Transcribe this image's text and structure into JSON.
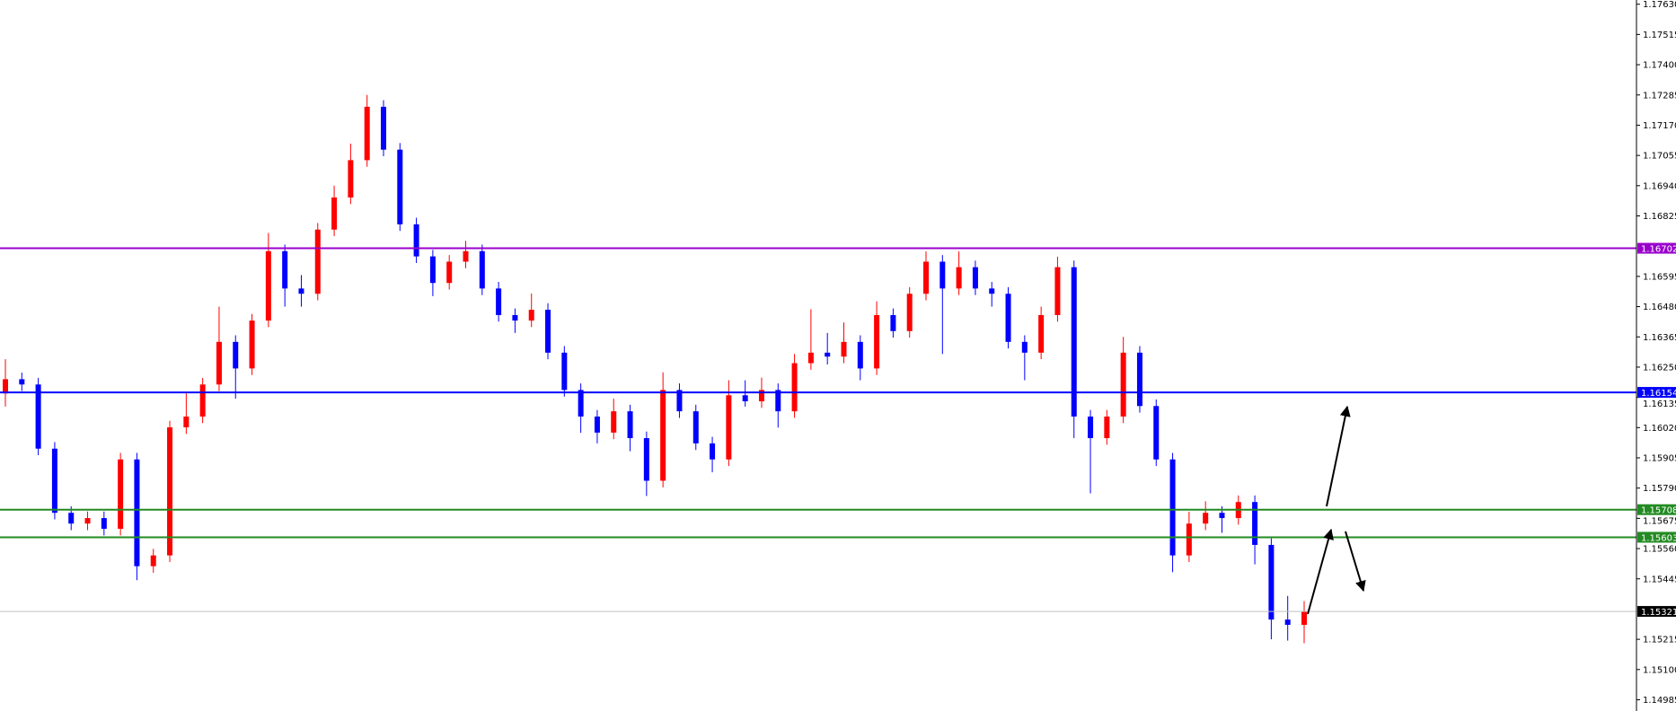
{
  "chart_data": {
    "type": "candlestick",
    "title": "",
    "xlabel": "",
    "ylabel": "",
    "ylim": [
      1.14985,
      1.1763
    ],
    "grid": false,
    "y_ticks": [
      "1.17630",
      "1.17515",
      "1.17400",
      "1.17285",
      "1.17170",
      "1.17055",
      "1.16940",
      "1.16825",
      "1.16595",
      "1.16480",
      "1.16365",
      "1.16250",
      "1.16135",
      "1.16020",
      "1.15905",
      "1.15790",
      "1.15675",
      "1.15560",
      "1.15445",
      "1.15215",
      "1.15100",
      "1.14985"
    ],
    "colors": {
      "up": "#ff0000",
      "down": "#0000ff"
    },
    "candles_ohlc": [
      [
        1.1615,
        1.1628,
        1.161,
        1.16204
      ],
      [
        1.16204,
        1.16229,
        1.16159,
        1.16184
      ],
      [
        1.16184,
        1.16209,
        1.15915,
        1.1594
      ],
      [
        1.1594,
        1.15965,
        1.15671,
        1.15696
      ],
      [
        1.15696,
        1.15721,
        1.1563,
        1.15655
      ],
      [
        1.15655,
        1.15701,
        1.1563,
        1.15676
      ],
      [
        1.15676,
        1.15701,
        1.1561,
        1.15635
      ],
      [
        1.15635,
        1.15924,
        1.1561,
        1.15899
      ],
      [
        1.15899,
        1.15924,
        1.1544,
        1.15493
      ],
      [
        1.15493,
        1.15559,
        1.15468,
        1.15534
      ],
      [
        1.15534,
        1.16046,
        1.15509,
        1.16021
      ],
      [
        1.16021,
        1.1615,
        1.15996,
        1.16062
      ],
      [
        1.16062,
        1.16209,
        1.16037,
        1.16184
      ],
      [
        1.16184,
        1.1648,
        1.16159,
        1.16346
      ],
      [
        1.16346,
        1.16371,
        1.1613,
        1.16245
      ],
      [
        1.16245,
        1.16452,
        1.1622,
        1.16427
      ],
      [
        1.16427,
        1.1676,
        1.16402,
        1.16691
      ],
      [
        1.16691,
        1.16716,
        1.1648,
        1.16549
      ],
      [
        1.16549,
        1.166,
        1.1648,
        1.16529
      ],
      [
        1.16529,
        1.16798,
        1.16504,
        1.16773
      ],
      [
        1.16773,
        1.1694,
        1.16748,
        1.16895
      ],
      [
        1.16895,
        1.171,
        1.1687,
        1.17037
      ],
      [
        1.17037,
        1.17285,
        1.17012,
        1.1724
      ],
      [
        1.1724,
        1.17265,
        1.17052,
        1.17077
      ],
      [
        1.17077,
        1.17102,
        1.16768,
        1.16793
      ],
      [
        1.16793,
        1.16818,
        1.16646,
        1.16671
      ],
      [
        1.16671,
        1.16696,
        1.1652,
        1.1657
      ],
      [
        1.1657,
        1.16676,
        1.16545,
        1.16651
      ],
      [
        1.16651,
        1.1673,
        1.16626,
        1.16691
      ],
      [
        1.16691,
        1.16716,
        1.16524,
        1.16549
      ],
      [
        1.16549,
        1.16574,
        1.16423,
        1.16448
      ],
      [
        1.16448,
        1.16473,
        1.1638,
        1.16427
      ],
      [
        1.16427,
        1.1653,
        1.16402,
        1.16468
      ],
      [
        1.16468,
        1.16493,
        1.1628,
        1.16305
      ],
      [
        1.16305,
        1.1633,
        1.16138,
        1.16163
      ],
      [
        1.16163,
        1.16188,
        1.16,
        1.16062
      ],
      [
        1.16062,
        1.16087,
        1.1596,
        1.16001
      ],
      [
        1.16001,
        1.1613,
        1.15976,
        1.16082
      ],
      [
        1.16082,
        1.16107,
        1.1593,
        1.1598
      ],
      [
        1.1598,
        1.16005,
        1.1576,
        1.15818
      ],
      [
        1.15818,
        1.1623,
        1.15793,
        1.16163
      ],
      [
        1.16163,
        1.16188,
        1.16057,
        1.16082
      ],
      [
        1.16082,
        1.16107,
        1.15935,
        1.1596
      ],
      [
        1.1596,
        1.15985,
        1.1585,
        1.15899
      ],
      [
        1.15899,
        1.162,
        1.15874,
        1.16143
      ],
      [
        1.16143,
        1.162,
        1.161,
        1.1612
      ],
      [
        1.1612,
        1.1621,
        1.16095,
        1.16163
      ],
      [
        1.16163,
        1.16188,
        1.1602,
        1.16082
      ],
      [
        1.16082,
        1.163,
        1.16057,
        1.16265
      ],
      [
        1.16265,
        1.1647,
        1.1624,
        1.16305
      ],
      [
        1.16305,
        1.1638,
        1.1626,
        1.1629
      ],
      [
        1.1629,
        1.1642,
        1.16265,
        1.16346
      ],
      [
        1.16346,
        1.16371,
        1.162,
        1.16245
      ],
      [
        1.16245,
        1.165,
        1.1622,
        1.16448
      ],
      [
        1.16448,
        1.16473,
        1.16362,
        1.16387
      ],
      [
        1.16387,
        1.16554,
        1.16362,
        1.16529
      ],
      [
        1.16529,
        1.1669,
        1.16504,
        1.16651
      ],
      [
        1.16651,
        1.16676,
        1.163,
        1.16549
      ],
      [
        1.16549,
        1.1669,
        1.16524,
        1.1663
      ],
      [
        1.1663,
        1.16655,
        1.16524,
        1.16549
      ],
      [
        1.16549,
        1.16574,
        1.1648,
        1.16529
      ],
      [
        1.16529,
        1.16554,
        1.16321,
        1.16346
      ],
      [
        1.16346,
        1.16371,
        1.162,
        1.16305
      ],
      [
        1.16305,
        1.1648,
        1.1628,
        1.16448
      ],
      [
        1.16448,
        1.1667,
        1.16423,
        1.1663
      ],
      [
        1.1663,
        1.16655,
        1.1598,
        1.16062
      ],
      [
        1.16062,
        1.16087,
        1.1577,
        1.1598
      ],
      [
        1.1598,
        1.16087,
        1.15955,
        1.16062
      ],
      [
        1.16062,
        1.16365,
        1.16037,
        1.16305
      ],
      [
        1.16305,
        1.1633,
        1.16077,
        1.16102
      ],
      [
        1.16102,
        1.16127,
        1.15874,
        1.15899
      ],
      [
        1.15899,
        1.15924,
        1.1547,
        1.15534
      ],
      [
        1.15534,
        1.157,
        1.15509,
        1.15655
      ],
      [
        1.15655,
        1.1574,
        1.1563,
        1.15696
      ],
      [
        1.15696,
        1.15721,
        1.1562,
        1.15676
      ],
      [
        1.15676,
        1.15762,
        1.15651,
        1.15737
      ],
      [
        1.15737,
        1.15762,
        1.155,
        1.15574
      ],
      [
        1.15574,
        1.15599,
        1.15215,
        1.1529
      ],
      [
        1.1529,
        1.1538,
        1.1521,
        1.1527
      ],
      [
        1.1527,
        1.1536,
        1.152,
        1.15321
      ]
    ],
    "horizontal_lines": [
      {
        "price": 1.16702,
        "label": "1.16702",
        "color": "#9900cc"
      },
      {
        "price": 1.16154,
        "label": "1.16154",
        "color": "#0000ff"
      },
      {
        "price": 1.15708,
        "label": "1.15708",
        "color": "#228b22"
      },
      {
        "price": 1.15603,
        "label": "1.15603",
        "color": "#228b22"
      }
    ],
    "current_price": {
      "price": 1.15321,
      "label": "1.15321",
      "line_color": "#c0c0c0",
      "label_color": "#000000"
    },
    "annotations": [
      "arrow-up",
      "arrow-down",
      "arrow-up-target"
    ]
  }
}
